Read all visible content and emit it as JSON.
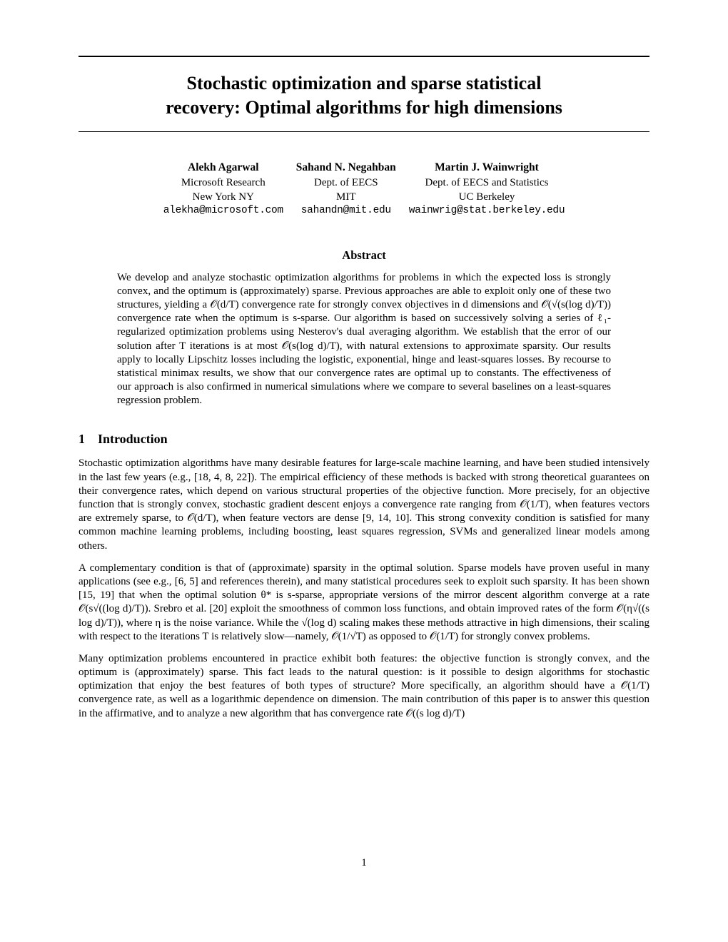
{
  "title_line1": "Stochastic optimization and sparse statistical",
  "title_line2": "recovery: Optimal algorithms for high dimensions",
  "authors": [
    {
      "name": "Alekh Agarwal",
      "affil1": "Microsoft Research",
      "affil2": "New York NY",
      "email": "alekha@microsoft.com"
    },
    {
      "name": "Sahand N. Negahban",
      "affil1": "Dept. of EECS",
      "affil2": "MIT",
      "email": "sahandn@mit.edu"
    },
    {
      "name": "Martin J. Wainwright",
      "affil1": "Dept. of EECS and Statistics",
      "affil2": "UC Berkeley",
      "email": "wainwrig@stat.berkeley.edu"
    }
  ],
  "abstract_heading": "Abstract",
  "abstract_body": "We develop and analyze stochastic optimization algorithms for problems in which the expected loss is strongly convex, and the optimum is (approximately) sparse. Previous approaches are able to exploit only one of these two structures, yielding a 𝒪(d/T) convergence rate for strongly convex objectives in d dimensions and 𝒪(√(s(log d)/T)) convergence rate when the optimum is s-sparse. Our algorithm is based on successively solving a series of ℓ₁-regularized optimization problems using Nesterov's dual averaging algorithm. We establish that the error of our solution after T iterations is at most 𝒪(s(log d)/T), with natural extensions to approximate sparsity. Our results apply to locally Lipschitz losses including the logistic, exponential, hinge and least-squares losses. By recourse to statistical minimax results, we show that our convergence rates are optimal up to constants. The effectiveness of our approach is also confirmed in numerical simulations where we compare to several baselines on a least-squares regression problem.",
  "section1_num": "1",
  "section1_title": "Introduction",
  "para1": "Stochastic optimization algorithms have many desirable features for large-scale machine learning, and have been studied intensively in the last few years (e.g., [18, 4, 8, 22]). The empirical efficiency of these methods is backed with strong theoretical guarantees on their convergence rates, which depend on various structural properties of the objective function. More precisely, for an objective function that is strongly convex, stochastic gradient descent enjoys a convergence rate ranging from 𝒪(1/T), when features vectors are extremely sparse, to 𝒪(d/T), when feature vectors are dense [9, 14, 10]. This strong convexity condition is satisfied for many common machine learning problems, including boosting, least squares regression, SVMs and generalized linear models among others.",
  "para2": "A complementary condition is that of (approximate) sparsity in the optimal solution. Sparse models have proven useful in many applications (see e.g., [6, 5] and references therein), and many statistical procedures seek to exploit such sparsity. It has been shown [15, 19] that when the optimal solution θ* is s-sparse, appropriate versions of the mirror descent algorithm converge at a rate 𝒪(s√((log d)/T)). Srebro et al. [20] exploit the smoothness of common loss functions, and obtain improved rates of the form 𝒪(η√((s log d)/T)), where η is the noise variance. While the √(log d) scaling makes these methods attractive in high dimensions, their scaling with respect to the iterations T is relatively slow—namely, 𝒪(1/√T) as opposed to 𝒪(1/T) for strongly convex problems.",
  "para3": "Many optimization problems encountered in practice exhibit both features: the objective function is strongly convex, and the optimum is (approximately) sparse. This fact leads to the natural question: is it possible to design algorithms for stochastic optimization that enjoy the best features of both types of structure? More specifically, an algorithm should have a 𝒪(1/T) convergence rate, as well as a logarithmic dependence on dimension. The main contribution of this paper is to answer this question in the affirmative, and to analyze a new algorithm that has convergence rate 𝒪((s log d)/T)",
  "page_number": "1"
}
